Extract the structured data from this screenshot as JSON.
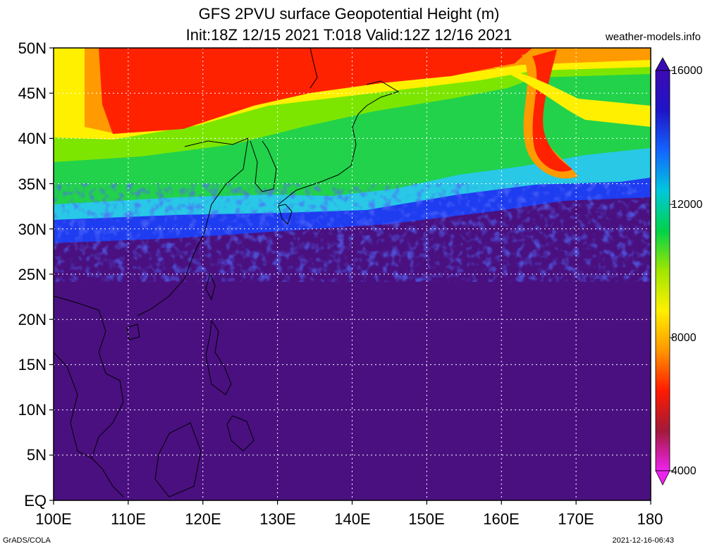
{
  "title": {
    "line1": "GFS 2PVU surface Geopotential Height (m)",
    "line2": "Init:18Z 12/15 2021 T:018 Valid:12Z 12/16 2021"
  },
  "credit": "weather-models.info",
  "footer": {
    "left": "GrADS/COLA",
    "right": "2021-12-16-06:43"
  },
  "map": {
    "lat_labels": [
      "50N",
      "45N",
      "40N",
      "35N",
      "30N",
      "25N",
      "20N",
      "15N",
      "10N",
      "5N",
      "EQ"
    ],
    "lon_labels": [
      "100E",
      "110E",
      "120E",
      "130E",
      "140E",
      "150E",
      "160E",
      "170E",
      "180"
    ],
    "lat_range": [
      0,
      50
    ],
    "lon_range": [
      100,
      180
    ],
    "grid": true
  },
  "colorbar": {
    "labels": [
      "16000",
      "12000",
      "8000",
      "4000"
    ],
    "min": 4000,
    "max": 16000,
    "colors": [
      "#ee22ee",
      "#c0209a",
      "#a21a3a",
      "#cc1010",
      "#ff1a00",
      "#ff5a00",
      "#ff9600",
      "#ffc800",
      "#fff000",
      "#d2f000",
      "#a0e600",
      "#5adc00",
      "#00d24a",
      "#00dca0",
      "#00c8dc",
      "#00a0f0",
      "#1464ff",
      "#1432e6",
      "#1e14c8",
      "#3c0ab4",
      "#4a0a96"
    ]
  },
  "colors": {
    "tropics": "#4a1080",
    "grid": "#ffffff"
  }
}
